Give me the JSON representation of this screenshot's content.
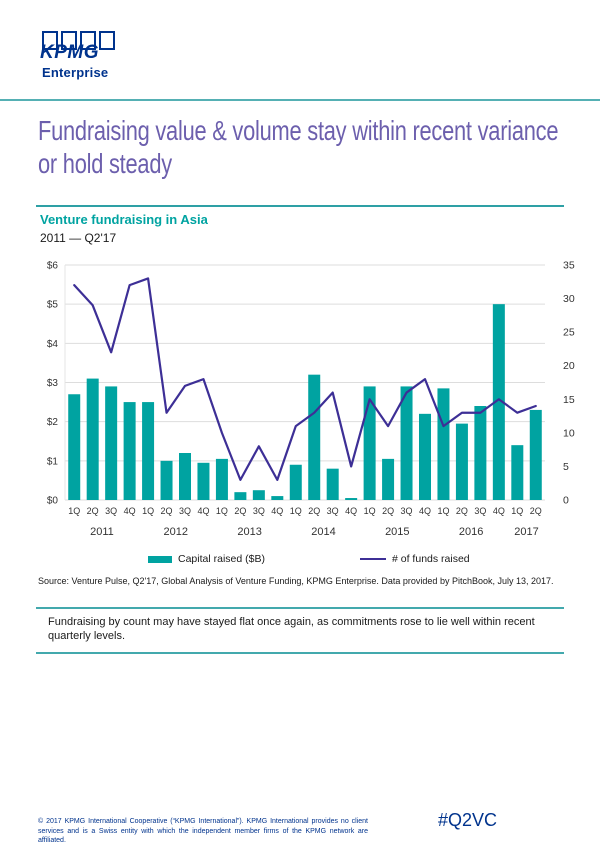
{
  "page": {
    "logo": {
      "brand": "KPMG",
      "unit": "Enterprise"
    },
    "title": "Fundraising value & volume stay within recent variance or hold steady",
    "section": {
      "heading": "Venture fundraising in Asia",
      "range": "2011 — Q2'17"
    },
    "source": "Source: Venture Pulse, Q2'17, Global Analysis of Venture Funding, KPMG Enterprise. Data provided by PitchBook, July 13, 2017.",
    "note": "Fundraising by count may have stayed flat once again, as commitments rose to lie well within recent quarterly levels.",
    "footer": {
      "copyright": "© 2017 KPMG International Cooperative (“KPMG International”). KPMG International provides no client services and is a Swiss entity with which the independent member firms of the KPMG network are affiliated.",
      "hashtag": "#Q2VC"
    }
  },
  "colors": {
    "kpmg_blue": "#00338D",
    "teal": "#00a3a1",
    "title_purple": "#6c5fad",
    "line_indigo": "#3d2f96",
    "gridline": "#dddddd"
  },
  "chart_data": {
    "type": "bar+line",
    "title": "Venture fundraising in Asia",
    "subtitle": "2011 — Q2'17",
    "categories": [
      "1Q",
      "2Q",
      "3Q",
      "4Q",
      "1Q",
      "2Q",
      "3Q",
      "4Q",
      "1Q",
      "2Q",
      "3Q",
      "4Q",
      "1Q",
      "2Q",
      "3Q",
      "4Q",
      "1Q",
      "2Q",
      "3Q",
      "4Q",
      "1Q",
      "2Q",
      "3Q",
      "4Q",
      "1Q",
      "2Q"
    ],
    "year_groups": [
      {
        "label": "2011",
        "quarters": 4
      },
      {
        "label": "2012",
        "quarters": 4
      },
      {
        "label": "2013",
        "quarters": 4
      },
      {
        "label": "2014",
        "quarters": 4
      },
      {
        "label": "2015",
        "quarters": 4
      },
      {
        "label": "2016",
        "quarters": 4
      },
      {
        "label": "2017",
        "quarters": 2
      }
    ],
    "series": [
      {
        "name": "Capital raised ($B)",
        "type": "bar",
        "axis": "left",
        "color": "#00a3a1",
        "values": [
          2.7,
          3.1,
          2.9,
          2.5,
          2.5,
          1.0,
          1.2,
          0.95,
          1.05,
          0.2,
          0.25,
          0.1,
          0.9,
          3.2,
          0.8,
          0.05,
          2.9,
          1.05,
          2.9,
          2.2,
          2.85,
          1.95,
          2.4,
          5.0,
          1.4,
          2.3
        ]
      },
      {
        "name": "# of funds raised",
        "type": "line",
        "axis": "right",
        "color": "#3d2f96",
        "values": [
          32,
          29,
          22,
          32,
          33,
          13,
          17,
          18,
          10,
          3,
          8,
          3,
          11,
          13,
          16,
          5,
          15,
          11,
          16,
          18,
          11,
          13,
          13,
          15,
          13,
          14
        ]
      }
    ],
    "left_axis": {
      "ticks": [
        "$0",
        "$1",
        "$2",
        "$3",
        "$4",
        "$5",
        "$6"
      ],
      "min": 0,
      "max": 6
    },
    "right_axis": {
      "ticks": [
        0,
        5,
        10,
        15,
        20,
        25,
        30,
        35
      ],
      "min": 0,
      "max": 35
    },
    "grid": "horizontal",
    "legend_position": "bottom"
  }
}
